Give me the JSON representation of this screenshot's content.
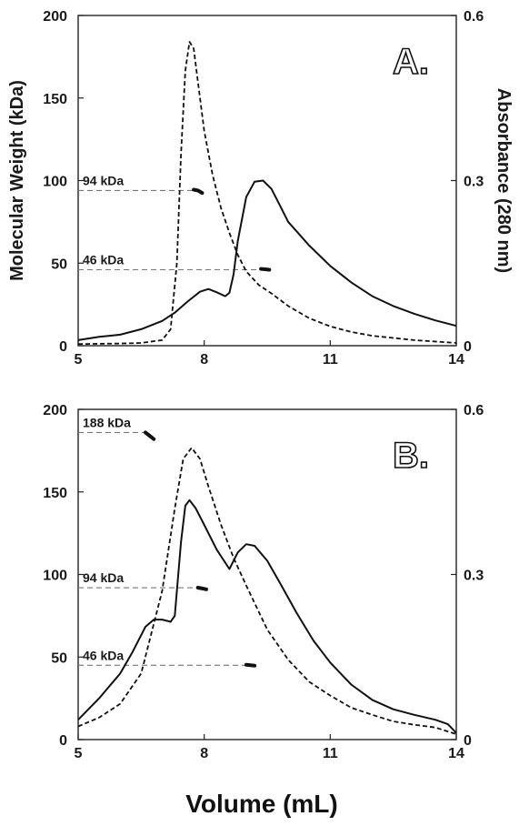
{
  "figure": {
    "xlabel": "Volume (mL)"
  },
  "chart_data": [
    {
      "type": "line",
      "panel_label": "A.",
      "ylabel_left": "Molecular Weight (kDa)",
      "ylabel_right": "Absorbance (280 nm)",
      "xlim": [
        5,
        14
      ],
      "ylim_left": [
        0,
        200
      ],
      "ylim_right": [
        0,
        0.6
      ],
      "x_ticks": [
        "5",
        "8",
        "11",
        "14"
      ],
      "y_ticks_left": [
        "0",
        "50",
        "100",
        "150",
        "200"
      ],
      "y_ticks_right": [
        "0",
        "0.3",
        "0.6"
      ],
      "grid": false,
      "legend": "none",
      "series": [
        {
          "style": "solid",
          "axis": "right",
          "x": [
            5.0,
            5.5,
            6.0,
            6.5,
            7.0,
            7.3,
            7.6,
            7.9,
            8.1,
            8.3,
            8.5,
            8.6,
            8.7,
            8.8,
            9.0,
            9.2,
            9.4,
            9.6,
            9.8,
            10.0,
            10.5,
            11.0,
            11.5,
            12.0,
            12.5,
            13.0,
            13.5,
            14.0
          ],
          "y": [
            0.01,
            0.016,
            0.02,
            0.03,
            0.045,
            0.06,
            0.08,
            0.098,
            0.103,
            0.097,
            0.09,
            0.096,
            0.13,
            0.19,
            0.27,
            0.298,
            0.3,
            0.285,
            0.255,
            0.225,
            0.182,
            0.145,
            0.115,
            0.09,
            0.072,
            0.058,
            0.046,
            0.036
          ]
        },
        {
          "style": "dashed",
          "axis": "right",
          "x": [
            5.0,
            6.0,
            6.5,
            7.0,
            7.2,
            7.35,
            7.45,
            7.55,
            7.65,
            7.75,
            7.85,
            8.0,
            8.2,
            8.4,
            8.6,
            8.8,
            9.0,
            9.3,
            9.6,
            10.0,
            10.5,
            11.0,
            11.5,
            12.0,
            13.0,
            14.0
          ],
          "y": [
            0.003,
            0.004,
            0.005,
            0.01,
            0.03,
            0.15,
            0.35,
            0.5,
            0.552,
            0.54,
            0.48,
            0.39,
            0.31,
            0.25,
            0.205,
            0.165,
            0.135,
            0.11,
            0.095,
            0.072,
            0.05,
            0.035,
            0.025,
            0.018,
            0.01,
            0.005
          ]
        }
      ],
      "reference_lines": [
        {
          "label": "94 kDa",
          "value": 94,
          "x_end": 7.75
        },
        {
          "label": "46 kDa",
          "value": 46,
          "x_end": 9.4
        }
      ],
      "mw_marks": [
        {
          "x": [
            7.75,
            7.85,
            7.95
          ],
          "y": [
            94.5,
            94,
            92.5
          ]
        },
        {
          "x": [
            9.35,
            9.45,
            9.55
          ],
          "y": [
            46.5,
            46.3,
            46
          ]
        }
      ]
    },
    {
      "type": "line",
      "panel_label": "B.",
      "ylabel_left": "",
      "ylabel_right": "",
      "xlim": [
        5,
        14
      ],
      "ylim_left": [
        0,
        200
      ],
      "ylim_right": [
        0,
        0.6
      ],
      "x_ticks": [
        "5",
        "8",
        "11",
        "14"
      ],
      "y_ticks_left": [
        "0",
        "50",
        "100",
        "150",
        "200"
      ],
      "y_ticks_right": [
        "0",
        "0.3",
        "0.6"
      ],
      "grid": false,
      "legend": "none",
      "series": [
        {
          "style": "solid",
          "axis": "right",
          "x": [
            5.0,
            5.5,
            6.0,
            6.3,
            6.6,
            6.8,
            7.0,
            7.2,
            7.3,
            7.45,
            7.55,
            7.65,
            7.8,
            8.0,
            8.3,
            8.6,
            8.8,
            9.0,
            9.2,
            9.5,
            9.8,
            10.2,
            10.6,
            11.0,
            11.5,
            12.0,
            12.5,
            13.0,
            13.5,
            13.8,
            14.0
          ],
          "y": [
            0.036,
            0.075,
            0.12,
            0.16,
            0.205,
            0.218,
            0.218,
            0.214,
            0.225,
            0.36,
            0.425,
            0.435,
            0.42,
            0.39,
            0.345,
            0.31,
            0.34,
            0.355,
            0.352,
            0.325,
            0.285,
            0.23,
            0.18,
            0.14,
            0.1,
            0.072,
            0.055,
            0.045,
            0.036,
            0.028,
            0.012
          ]
        },
        {
          "style": "dashed",
          "axis": "right",
          "x": [
            5.0,
            5.5,
            6.0,
            6.5,
            7.0,
            7.3,
            7.5,
            7.7,
            7.9,
            8.1,
            8.4,
            8.7,
            9.0,
            9.5,
            10.0,
            10.5,
            11.0,
            11.5,
            12.0,
            12.5,
            13.0,
            13.5,
            14.0
          ],
          "y": [
            0.024,
            0.04,
            0.065,
            0.12,
            0.27,
            0.42,
            0.51,
            0.53,
            0.51,
            0.46,
            0.39,
            0.33,
            0.28,
            0.2,
            0.145,
            0.105,
            0.08,
            0.058,
            0.045,
            0.033,
            0.027,
            0.022,
            0.01
          ]
        }
      ],
      "reference_lines": [
        {
          "label": "188 kDa",
          "value": 186,
          "x_end": 6.6
        },
        {
          "label": "94 kDa",
          "value": 92,
          "x_end": 7.85
        },
        {
          "label": "46 kDa",
          "value": 45,
          "x_end": 9.0
        }
      ],
      "mw_marks": [
        {
          "x": [
            6.6,
            6.7,
            6.8
          ],
          "y": [
            186,
            184,
            182
          ]
        },
        {
          "x": [
            7.85,
            7.95,
            8.05
          ],
          "y": [
            92,
            91.5,
            91
          ]
        },
        {
          "x": [
            9.0,
            9.1,
            9.2
          ],
          "y": [
            45.3,
            45,
            44.8
          ]
        }
      ]
    }
  ]
}
